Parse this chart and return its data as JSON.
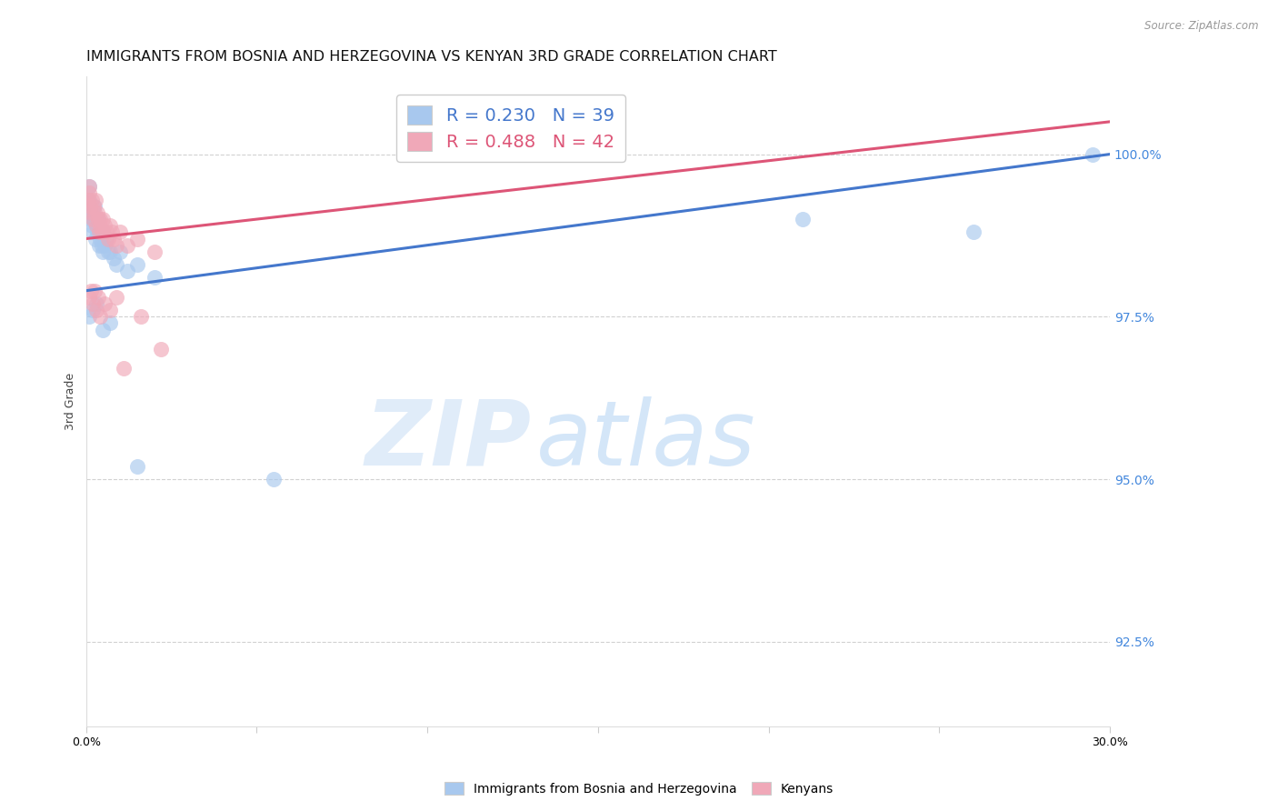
{
  "title": "IMMIGRANTS FROM BOSNIA AND HERZEGOVINA VS KENYAN 3RD GRADE CORRELATION CHART",
  "source": "Source: ZipAtlas.com",
  "ylabel": "3rd Grade",
  "right_yticks": [
    92.5,
    95.0,
    97.5,
    100.0
  ],
  "right_ytick_labels": [
    "92.5%",
    "95.0%",
    "97.5%",
    "100.0%"
  ],
  "xmin": 0.0,
  "xmax": 30.0,
  "ymin": 91.2,
  "ymax": 101.2,
  "blue_color": "#A8C8EE",
  "pink_color": "#F0A8B8",
  "blue_line_color": "#4477CC",
  "pink_line_color": "#DD5577",
  "legend_blue_label": "R = 0.230   N = 39",
  "legend_pink_label": "R = 0.488   N = 42",
  "blue_scatter_x": [
    0.05,
    0.08,
    0.1,
    0.12,
    0.15,
    0.18,
    0.2,
    0.22,
    0.25,
    0.28,
    0.3,
    0.32,
    0.35,
    0.38,
    0.4,
    0.42,
    0.45,
    0.48,
    0.5,
    0.55,
    0.6,
    0.65,
    0.7,
    0.8,
    0.9,
    1.0,
    1.2,
    1.5,
    2.0,
    0.1,
    0.2,
    0.3,
    0.5,
    0.7,
    1.5,
    5.5,
    21.0,
    26.0,
    29.5
  ],
  "blue_scatter_y": [
    99.2,
    99.5,
    99.3,
    99.0,
    99.1,
    98.9,
    98.8,
    99.0,
    99.2,
    98.7,
    98.9,
    98.8,
    99.0,
    98.6,
    98.8,
    98.7,
    98.6,
    98.8,
    98.5,
    98.6,
    98.7,
    98.5,
    98.5,
    98.4,
    98.3,
    98.5,
    98.2,
    98.3,
    98.1,
    97.5,
    97.6,
    97.7,
    97.3,
    97.4,
    95.2,
    95.0,
    99.0,
    98.8,
    100.0
  ],
  "pink_scatter_x": [
    0.05,
    0.08,
    0.1,
    0.12,
    0.15,
    0.18,
    0.2,
    0.22,
    0.25,
    0.28,
    0.3,
    0.32,
    0.35,
    0.38,
    0.4,
    0.42,
    0.45,
    0.5,
    0.55,
    0.6,
    0.65,
    0.7,
    0.75,
    0.8,
    0.9,
    1.0,
    1.2,
    1.5,
    2.0,
    0.1,
    0.15,
    0.2,
    0.25,
    0.3,
    0.35,
    0.4,
    0.55,
    0.7,
    0.9,
    1.1,
    1.6,
    2.2
  ],
  "pink_scatter_y": [
    99.3,
    99.5,
    99.4,
    99.2,
    99.1,
    99.3,
    99.0,
    99.2,
    99.1,
    99.3,
    98.9,
    99.1,
    99.0,
    98.8,
    99.0,
    98.9,
    98.8,
    99.0,
    98.9,
    98.8,
    98.7,
    98.9,
    98.8,
    98.7,
    98.6,
    98.8,
    98.6,
    98.7,
    98.5,
    97.8,
    97.9,
    97.7,
    97.9,
    97.6,
    97.8,
    97.5,
    97.7,
    97.6,
    97.8,
    96.7,
    97.5,
    97.0
  ],
  "watermark_zip": "ZIP",
  "watermark_atlas": "atlas",
  "legend_label_blue": "Immigrants from Bosnia and Herzegovina",
  "legend_label_pink": "Kenyans",
  "title_fontsize": 11.5,
  "axis_label_fontsize": 9,
  "tick_label_fontsize": 9,
  "right_axis_color": "#4488DD",
  "blue_trend_y0": 97.9,
  "blue_trend_y1": 100.0,
  "pink_trend_y0": 98.7,
  "pink_trend_y1": 100.5
}
